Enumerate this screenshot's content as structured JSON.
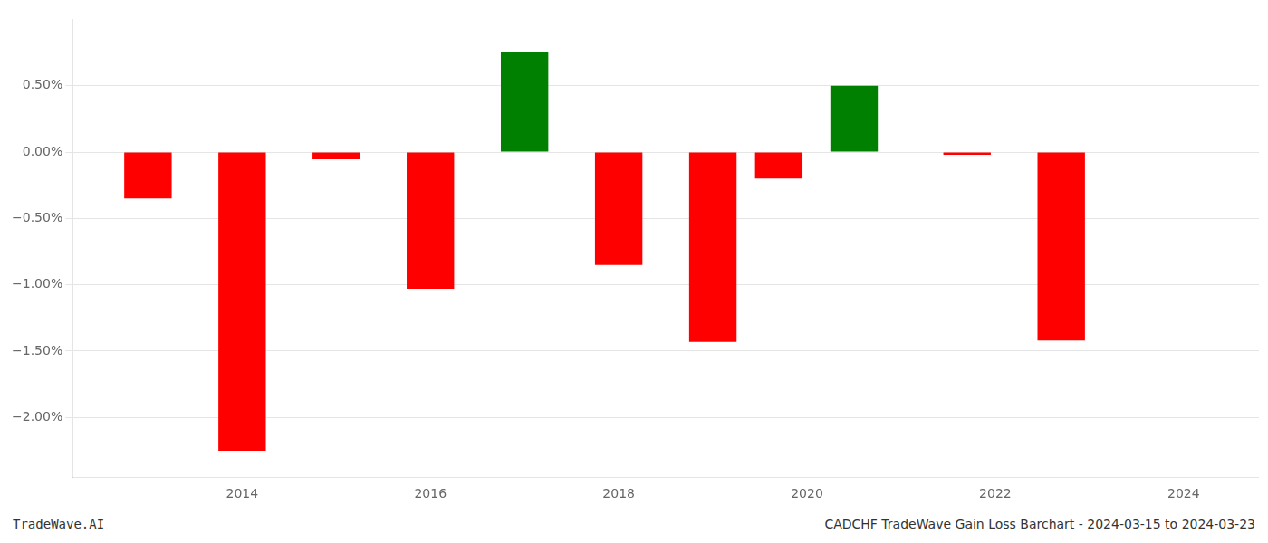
{
  "chart_data": {
    "type": "bar",
    "title": "CADCHF TradeWave Gain Loss Barchart - 2024-03-15 to 2024-03-23",
    "annotations": [
      "TradeWave.AI"
    ],
    "x": [
      2013,
      2014,
      2015,
      2016,
      2017,
      2018,
      2019,
      2019.7,
      2020.5,
      2021.7,
      2022.7
    ],
    "values": [
      -0.35,
      -2.25,
      -0.055,
      -1.03,
      0.755,
      -0.85,
      -1.43,
      -0.2,
      0.5,
      -0.02,
      -1.42
    ],
    "colors": [
      "#ff0000",
      "#ff0000",
      "#ff0000",
      "#ff0000",
      "#008000",
      "#ff0000",
      "#ff0000",
      "#ff0000",
      "#008000",
      "#ff0000",
      "#ff0000"
    ],
    "xlim": [
      2012.2,
      2024.8
    ],
    "xticks": [
      2014,
      2016,
      2018,
      2020,
      2022,
      2024
    ],
    "ylim": [
      -2.45,
      1.0
    ],
    "yticks": [
      {
        "value": -2.0,
        "label": "−2.00%"
      },
      {
        "value": -1.5,
        "label": "−1.50%"
      },
      {
        "value": -1.0,
        "label": "−1.00%"
      },
      {
        "value": -0.5,
        "label": "−0.50%"
      },
      {
        "value": 0.0,
        "label": "0.00%"
      },
      {
        "value": 0.5,
        "label": "0.50%"
      }
    ],
    "grid": "y"
  }
}
